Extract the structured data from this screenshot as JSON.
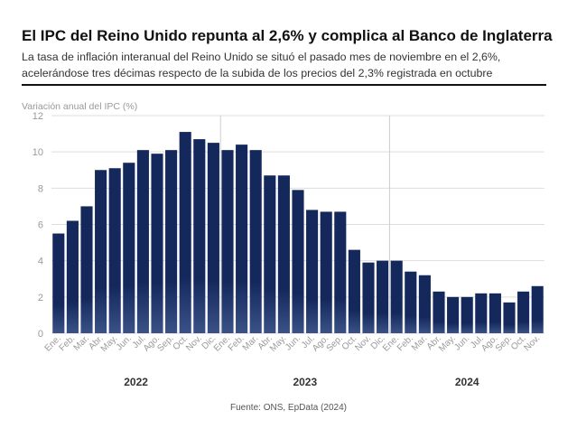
{
  "header": {
    "title": "El IPC del Reino Unido repunta al 2,6% y complica al Banco de Inglaterra",
    "subtitle": "La tasa de inflación interanual del Reino Unido se situó el pasado mes de noviembre en el 2,6%, acelerándose tres décimas respecto de la subida de los precios del 2,3% registrada en octubre"
  },
  "footer": {
    "source": "Fuente: ONS, EpData (2024)"
  },
  "colors": {
    "bar": "#14285c",
    "bar_light": "#3a5286",
    "grid": "#dddddd",
    "axis_text": "#999999"
  },
  "chart_data": {
    "type": "bar",
    "ylabel": "Variación anual del IPC (%)",
    "ylim": [
      0,
      12
    ],
    "yticks": [
      0,
      2,
      4,
      6,
      8,
      10,
      12
    ],
    "grid": true,
    "categories": [
      "Ene.",
      "Feb.",
      "Mar.",
      "Abr.",
      "May.",
      "Jun.",
      "Jul.",
      "Ago.",
      "Sep.",
      "Oct.",
      "Nov.",
      "Dic.",
      "Ene.",
      "Feb.",
      "Mar.",
      "Abr.",
      "May.",
      "Jun.",
      "Jul.",
      "Ago.",
      "Sep.",
      "Oct.",
      "Nov.",
      "Dic.",
      "Ene.",
      "Feb.",
      "Mar.",
      "Abr.",
      "May.",
      "Jun.",
      "Jul.",
      "Ago.",
      "Sep.",
      "Oct.",
      "Nov."
    ],
    "values": [
      5.5,
      6.2,
      7.0,
      9.0,
      9.1,
      9.4,
      10.1,
      9.9,
      10.1,
      11.1,
      10.7,
      10.5,
      10.1,
      10.4,
      10.1,
      8.7,
      8.7,
      7.9,
      6.8,
      6.7,
      6.7,
      4.6,
      3.9,
      4.0,
      4.0,
      3.4,
      3.2,
      2.3,
      2.0,
      2.0,
      2.2,
      2.2,
      1.7,
      2.3,
      2.6
    ],
    "years": [
      {
        "label": "2022",
        "start": 0,
        "end": 11
      },
      {
        "label": "2023",
        "start": 12,
        "end": 23
      },
      {
        "label": "2024",
        "start": 24,
        "end": 34
      }
    ]
  }
}
